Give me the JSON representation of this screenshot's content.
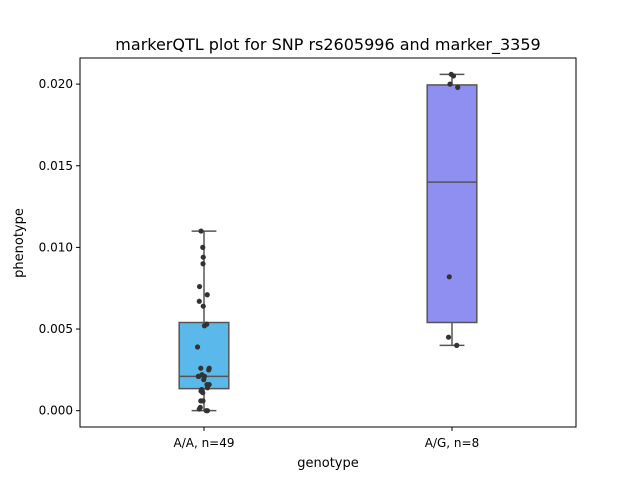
{
  "chart_data": {
    "type": "box",
    "title": "markerQTL plot for SNP rs2605996 and marker_3359",
    "xlabel": "genotype",
    "ylabel": "phenotype",
    "ylim": [
      -0.001,
      0.0216
    ],
    "yticks": [
      0.0,
      0.005,
      0.01,
      0.015,
      0.02
    ],
    "ytick_labels": [
      "0.000",
      "0.005",
      "0.010",
      "0.015",
      "0.020"
    ],
    "categories": [
      "A/A, n=49",
      "A/G, n=8"
    ],
    "colors": {
      "box": [
        "#5ab9ea",
        "#8f8ff1"
      ],
      "edge": "#555555",
      "points": "#333333",
      "axis": "#000000"
    },
    "groups": [
      {
        "name": "A/A, n=49",
        "whisker_low": 0.0,
        "q1": 0.00135,
        "median": 0.0021,
        "q3": 0.0054,
        "whisker_high": 0.011,
        "points": [
          {
            "x": -0.12,
            "y": 0.011
          },
          {
            "x": -0.05,
            "y": 0.01
          },
          {
            "x": -0.03,
            "y": 0.0094
          },
          {
            "x": -0.04,
            "y": 0.009
          },
          {
            "x": -0.18,
            "y": 0.0076
          },
          {
            "x": 0.13,
            "y": 0.0071
          },
          {
            "x": -0.19,
            "y": 0.0067
          },
          {
            "x": -0.03,
            "y": 0.0064
          },
          {
            "x": 0.11,
            "y": 0.0053
          },
          {
            "x": 0.02,
            "y": 0.0052
          },
          {
            "x": -0.26,
            "y": 0.0039
          },
          {
            "x": -0.13,
            "y": 0.0026
          },
          {
            "x": 0.21,
            "y": 0.0026
          },
          {
            "x": 0.19,
            "y": 0.0025
          },
          {
            "x": -0.23,
            "y": 0.0021
          },
          {
            "x": -0.08,
            "y": 0.0022
          },
          {
            "x": 0.02,
            "y": 0.0021
          },
          {
            "x": -0.21,
            "y": 0.0021
          },
          {
            "x": -0.01,
            "y": 0.0019
          },
          {
            "x": 0.12,
            "y": 0.0016
          },
          {
            "x": 0.21,
            "y": 0.0016
          },
          {
            "x": 0.14,
            "y": 0.0014
          },
          {
            "x": -0.09,
            "y": 0.0013
          },
          {
            "x": -0.05,
            "y": 0.0011
          },
          {
            "x": -0.12,
            "y": 0.0012
          },
          {
            "x": -0.13,
            "y": 0.0006
          },
          {
            "x": -0.04,
            "y": 0.0006
          },
          {
            "x": -0.19,
            "y": 0.0001
          },
          {
            "x": -0.15,
            "y": 0.0002
          },
          {
            "x": 0.09,
            "y": 0.0
          },
          {
            "x": 0.14,
            "y": 0.0
          }
        ]
      },
      {
        "name": "A/G, n=8",
        "whisker_low": 0.004,
        "q1": 0.0054,
        "median": 0.014,
        "q3": 0.01995,
        "whisker_high": 0.0206,
        "points": [
          {
            "x": -0.03,
            "y": 0.0206
          },
          {
            "x": 0.06,
            "y": 0.0205
          },
          {
            "x": -0.08,
            "y": 0.02
          },
          {
            "x": 0.23,
            "y": 0.0198
          },
          {
            "x": -0.11,
            "y": 0.0082
          },
          {
            "x": -0.14,
            "y": 0.0045
          },
          {
            "x": 0.19,
            "y": 0.004
          }
        ]
      }
    ]
  }
}
